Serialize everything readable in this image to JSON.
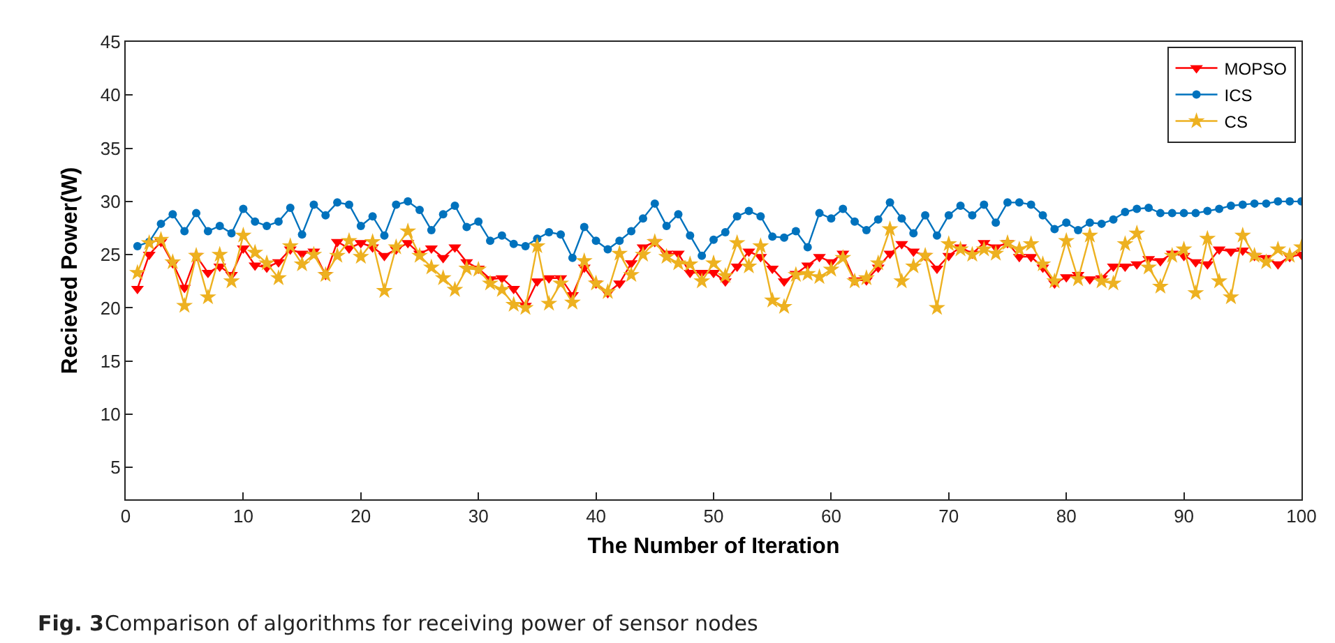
{
  "chart_data": {
    "type": "line",
    "xlabel": "The Number of Iteration",
    "ylabel": "Recieved Power(W)",
    "annotations": [
      "Fig. 3",
      "Comparison of algorithms for receiving power of sensor nodes"
    ],
    "x": [
      1,
      2,
      3,
      4,
      5,
      6,
      7,
      8,
      9,
      10,
      11,
      12,
      13,
      14,
      15,
      16,
      17,
      18,
      19,
      20,
      21,
      22,
      23,
      24,
      25,
      26,
      27,
      28,
      29,
      30,
      31,
      32,
      33,
      34,
      35,
      36,
      37,
      38,
      39,
      40,
      41,
      42,
      43,
      44,
      45,
      46,
      47,
      48,
      49,
      50,
      51,
      52,
      53,
      54,
      55,
      56,
      57,
      58,
      59,
      60,
      61,
      62,
      63,
      64,
      65,
      66,
      67,
      68,
      69,
      70,
      71,
      72,
      73,
      74,
      75,
      76,
      77,
      78,
      79,
      80,
      81,
      82,
      83,
      84,
      85,
      86,
      87,
      88,
      89,
      90,
      91,
      92,
      93,
      94,
      95,
      96,
      97,
      98,
      99,
      100
    ],
    "xlim": [
      0,
      100
    ],
    "xticks": [
      0,
      10,
      20,
      30,
      40,
      50,
      60,
      70,
      80,
      90,
      100
    ],
    "ylim": [
      2,
      45
    ],
    "yticks": [
      5,
      10,
      15,
      20,
      25,
      30,
      35,
      40,
      45
    ],
    "grid": false,
    "legend": "top right",
    "line_style": "solid",
    "series": [
      {
        "name": "MOPSO",
        "color": "#ff0000",
        "marker": "triangle",
        "values": [
          21.8,
          25.0,
          26.2,
          24.2,
          21.9,
          24.9,
          23.3,
          23.9,
          23.1,
          25.6,
          24.0,
          23.8,
          24.3,
          25.5,
          25.1,
          25.3,
          23.1,
          26.2,
          25.6,
          26.1,
          25.7,
          24.9,
          25.5,
          26.1,
          25.1,
          25.6,
          24.7,
          25.7,
          24.3,
          23.7,
          22.7,
          22.8,
          21.8,
          20.2,
          22.5,
          22.8,
          22.8,
          21.2,
          23.8,
          22.3,
          21.4,
          22.3,
          24.2,
          25.7,
          26.2,
          25.1,
          25.1,
          23.3,
          23.3,
          23.3,
          22.5,
          23.9,
          25.3,
          24.8,
          23.7,
          22.5,
          23.2,
          24.0,
          24.8,
          24.3,
          25.1,
          22.6,
          22.6,
          23.8,
          25.1,
          26.0,
          25.3,
          24.9,
          23.7,
          24.9,
          25.7,
          25.1,
          26.1,
          25.7,
          26.1,
          24.8,
          24.8,
          23.8,
          22.3,
          22.9,
          23.1,
          22.7,
          22.8,
          23.9,
          23.9,
          24.1,
          24.6,
          24.4,
          25.1,
          24.9,
          24.3,
          24.1,
          25.5,
          25.3,
          25.4,
          24.9,
          24.7,
          24.1,
          24.8,
          25.0
        ]
      },
      {
        "name": "ICS",
        "color": "#0072bd",
        "marker": "circle",
        "values": [
          25.8,
          26.2,
          27.9,
          28.8,
          27.2,
          28.9,
          27.2,
          27.7,
          27.0,
          29.3,
          28.1,
          27.7,
          28.1,
          29.4,
          26.9,
          29.7,
          28.7,
          29.9,
          29.7,
          27.7,
          28.6,
          26.8,
          29.7,
          30.0,
          29.2,
          27.3,
          28.8,
          29.6,
          27.6,
          28.1,
          26.3,
          26.8,
          26.0,
          25.8,
          26.5,
          27.1,
          26.9,
          24.7,
          27.6,
          26.3,
          25.5,
          26.3,
          27.2,
          28.4,
          29.8,
          27.7,
          28.8,
          26.8,
          24.9,
          26.4,
          27.1,
          28.6,
          29.1,
          28.6,
          26.7,
          26.6,
          27.2,
          25.7,
          28.9,
          28.4,
          29.3,
          28.1,
          27.3,
          28.3,
          29.9,
          28.4,
          27.0,
          28.7,
          26.8,
          28.7,
          29.6,
          28.7,
          29.7,
          28.0,
          29.9,
          29.9,
          29.7,
          28.7,
          27.4,
          28.0,
          27.3,
          28.0,
          27.9,
          28.3,
          29.0,
          29.3,
          29.4,
          28.9,
          28.9,
          28.9,
          28.9,
          29.1,
          29.3,
          29.6,
          29.7,
          29.8,
          29.8,
          30.0,
          30.0,
          30.0
        ]
      },
      {
        "name": "CS",
        "color": "#edb120",
        "marker": "star",
        "values": [
          23.3,
          26.1,
          26.4,
          24.3,
          20.2,
          24.9,
          21.0,
          25.0,
          22.5,
          26.8,
          25.2,
          24.2,
          22.8,
          25.8,
          24.1,
          25.0,
          23.1,
          24.9,
          26.3,
          24.8,
          26.2,
          21.6,
          25.7,
          27.2,
          24.9,
          23.8,
          22.8,
          21.7,
          23.7,
          23.6,
          22.3,
          21.7,
          20.3,
          20.0,
          25.8,
          20.4,
          22.3,
          20.5,
          24.4,
          22.3,
          21.5,
          25.1,
          23.1,
          25.0,
          26.2,
          24.8,
          24.2,
          24.1,
          22.5,
          24.2,
          23.0,
          26.1,
          23.9,
          25.8,
          20.7,
          20.1,
          23.1,
          23.2,
          22.9,
          23.6,
          24.7,
          22.5,
          22.8,
          24.2,
          27.4,
          22.5,
          23.9,
          24.9,
          20.0,
          26.0,
          25.5,
          25.0,
          25.5,
          25.1,
          26.1,
          25.5,
          26.0,
          24.1,
          22.5,
          26.3,
          22.7,
          26.8,
          22.5,
          22.3,
          26.0,
          27.0,
          23.8,
          22.0,
          24.9,
          25.5,
          21.4,
          26.5,
          22.5,
          21.0,
          26.8,
          24.9,
          24.3,
          25.5,
          24.9,
          25.7
        ]
      }
    ]
  }
}
